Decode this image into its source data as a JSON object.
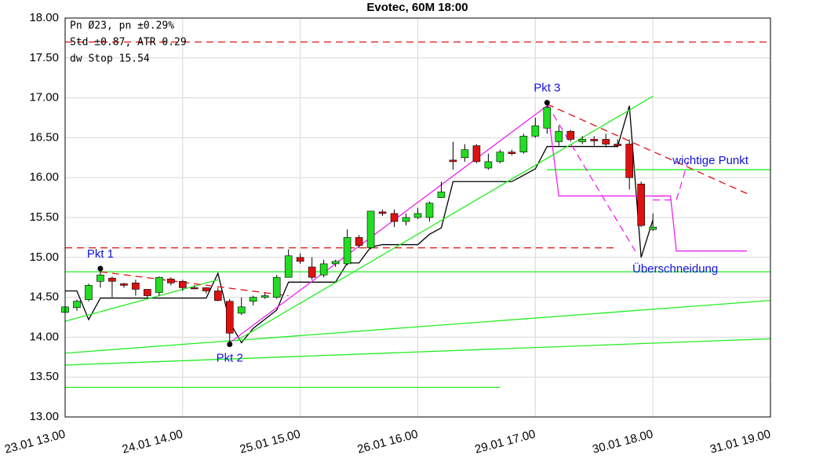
{
  "chart_data": {
    "type": "candlestick",
    "title": "Evotec, 60M 18:00",
    "info": [
      "Pn  Ø23, pn ±0.29%",
      "Std ±0.87, ATR 0.29",
      "dw Stop 15.54"
    ],
    "x": [
      0,
      1,
      2,
      3,
      4,
      5,
      6,
      7,
      8,
      9,
      10,
      11,
      12,
      13,
      14,
      15,
      16,
      17,
      18,
      19,
      20,
      21,
      22,
      23,
      24,
      25,
      26,
      27,
      28,
      29,
      30,
      31,
      32,
      33,
      34,
      35,
      36,
      37,
      38,
      39,
      40,
      41,
      42,
      43,
      44,
      45,
      46,
      47,
      48,
      49,
      50
    ],
    "open": [
      14.31,
      14.37,
      14.47,
      14.7,
      14.74,
      14.67,
      14.68,
      14.6,
      14.56,
      14.73,
      14.7,
      14.62,
      14.62,
      14.58,
      14.45,
      14.3,
      14.45,
      14.5,
      14.5,
      14.75,
      15.0,
      14.88,
      14.78,
      14.92,
      14.92,
      15.25,
      15.12,
      15.57,
      15.55,
      15.45,
      15.5,
      15.5,
      15.75,
      16.22,
      16.25,
      16.4,
      16.12,
      16.2,
      16.32,
      16.32,
      16.52,
      16.62,
      16.45,
      16.58,
      16.45,
      16.48,
      16.48,
      16.42,
      16.42,
      15.92,
      15.35
    ],
    "high": [
      14.4,
      14.47,
      14.67,
      14.85,
      14.76,
      14.68,
      14.72,
      14.6,
      14.76,
      14.75,
      14.72,
      14.65,
      14.62,
      14.62,
      14.48,
      14.5,
      14.52,
      14.55,
      14.78,
      15.1,
      15.05,
      15.0,
      14.97,
      14.97,
      15.35,
      15.28,
      15.58,
      15.6,
      15.6,
      15.55,
      15.62,
      15.7,
      15.95,
      16.45,
      16.42,
      16.42,
      16.3,
      16.35,
      16.35,
      16.55,
      16.75,
      16.95,
      16.65,
      16.6,
      16.52,
      16.52,
      16.55,
      16.48,
      16.48,
      15.95,
      15.55
    ],
    "low": [
      14.28,
      14.33,
      14.45,
      14.62,
      14.5,
      14.62,
      14.52,
      14.5,
      14.52,
      14.65,
      14.58,
      14.6,
      14.55,
      14.45,
      13.92,
      14.28,
      14.4,
      14.48,
      14.48,
      14.75,
      14.92,
      14.72,
      14.75,
      14.88,
      14.9,
      15.12,
      15.1,
      15.52,
      15.38,
      15.4,
      15.48,
      15.45,
      15.75,
      16.1,
      16.2,
      16.18,
      16.1,
      16.18,
      16.28,
      16.3,
      16.5,
      16.55,
      16.4,
      16.45,
      16.42,
      16.4,
      16.38,
      16.38,
      15.85,
      15.38,
      15.33
    ],
    "close": [
      14.38,
      14.45,
      14.65,
      14.78,
      14.7,
      14.65,
      14.6,
      14.52,
      14.75,
      14.68,
      14.62,
      14.61,
      14.58,
      14.46,
      14.05,
      14.38,
      14.5,
      14.52,
      14.75,
      15.02,
      14.95,
      14.75,
      14.92,
      14.95,
      15.25,
      15.15,
      15.58,
      15.55,
      15.45,
      15.5,
      15.55,
      15.68,
      15.82,
      16.2,
      16.35,
      16.2,
      16.2,
      16.32,
      16.3,
      16.52,
      16.65,
      16.88,
      16.58,
      16.48,
      16.48,
      16.46,
      16.42,
      16.4,
      16.0,
      15.4,
      15.38
    ],
    "up_color": "#22dd22",
    "down_color": "#dd1111",
    "xlim": [
      0,
      60
    ],
    "xticks": [
      {
        "value": 0,
        "label": "23.01 13.00"
      },
      {
        "value": 10,
        "label": "24.01 14.00"
      },
      {
        "value": 20,
        "label": "25.01 15.00"
      },
      {
        "value": 30,
        "label": "26.01 16.00"
      },
      {
        "value": 40,
        "label": "29.01 17.00"
      },
      {
        "value": 50,
        "label": "30.01 18.00"
      },
      {
        "value": 60,
        "label": "31.01 19.00"
      }
    ],
    "ylim": [
      13,
      18
    ],
    "yticks": [
      {
        "value": 13,
        "label": "13.00"
      },
      {
        "value": 13.5,
        "label": "13.50"
      },
      {
        "value": 14,
        "label": "14.00"
      },
      {
        "value": 14.5,
        "label": "14.50"
      },
      {
        "value": 15,
        "label": "15.00"
      },
      {
        "value": 15.5,
        "label": "15.50"
      },
      {
        "value": 16,
        "label": "16.00"
      },
      {
        "value": 16.5,
        "label": "16.50"
      },
      {
        "value": 17,
        "label": "17.00"
      },
      {
        "value": 17.5,
        "label": "17.50"
      },
      {
        "value": 18,
        "label": "18.00"
      }
    ],
    "grid": true,
    "lines": [
      {
        "color": "#000000",
        "dashed": false,
        "x": [
          0,
          1,
          2,
          3,
          12,
          13,
          14,
          15,
          16,
          18,
          19,
          23,
          24,
          25,
          26,
          27,
          30,
          31,
          32,
          33,
          38,
          39,
          40,
          41,
          47,
          48,
          49,
          50
        ],
        "y": [
          14.58,
          14.58,
          14.22,
          14.49,
          14.49,
          14.8,
          14.19,
          13.93,
          14.11,
          14.34,
          14.69,
          14.69,
          14.93,
          14.93,
          15.13,
          15.16,
          15.16,
          15.29,
          15.37,
          15.95,
          15.95,
          16.03,
          16.11,
          16.39,
          16.39,
          16.9,
          15.0,
          15.47
        ]
      },
      {
        "color": "#22ee22",
        "dashed": false,
        "x": [
          0,
          13
        ],
        "y": [
          14.2,
          14.72
        ]
      },
      {
        "color": "#22ee22",
        "dashed": false,
        "x": [
          0,
          60
        ],
        "y": [
          14.82,
          14.82
        ]
      },
      {
        "color": "#22ee22",
        "dashed": false,
        "x": [
          14.5,
          50
        ],
        "y": [
          13.95,
          17.02
        ]
      },
      {
        "color": "#22ee22",
        "dashed": false,
        "x": [
          41,
          60
        ],
        "y": [
          16.1,
          16.1
        ]
      },
      {
        "color": "#22ee22",
        "dashed": false,
        "x": [
          0,
          60
        ],
        "y": [
          13.8,
          14.46
        ]
      },
      {
        "color": "#22ee22",
        "dashed": false,
        "x": [
          0,
          60
        ],
        "y": [
          13.65,
          13.98
        ]
      },
      {
        "color": "#22ee22",
        "dashed": false,
        "x": [
          0,
          37
        ],
        "y": [
          13.37,
          13.37
        ]
      },
      {
        "color": "#dd1111",
        "dashed": true,
        "x": [
          0,
          60
        ],
        "y": [
          17.7,
          17.7
        ]
      },
      {
        "color": "#dd1111",
        "dashed": true,
        "x": [
          0,
          47
        ],
        "y": [
          15.12,
          15.12
        ]
      },
      {
        "color": "#dd1111",
        "dashed": true,
        "x": [
          3,
          19
        ],
        "y": [
          14.82,
          14.52
        ]
      },
      {
        "color": "#dd1111",
        "dashed": true,
        "x": [
          41,
          58
        ],
        "y": [
          16.92,
          15.8
        ]
      },
      {
        "color": "#ee22ee",
        "dashed": false,
        "x": [
          14,
          41
        ],
        "y": [
          13.93,
          16.9
        ]
      },
      {
        "color": "#ee22ee",
        "dashed": false,
        "x": [
          41,
          42,
          51
        ],
        "y": [
          16.92,
          15.77,
          15.77
        ]
      },
      {
        "color": "#ee22ee",
        "dashed": false,
        "x": [
          50,
          51.5,
          52,
          58
        ],
        "y": [
          15.77,
          15.77,
          15.08,
          15.08
        ]
      },
      {
        "color": "#ee22ee",
        "dashed": true,
        "x": [
          41,
          48.5
        ],
        "y": [
          16.92,
          15.08
        ]
      },
      {
        "color": "#ee22ee",
        "dashed": true,
        "x": [
          50,
          52,
          53
        ],
        "y": [
          15.72,
          15.72,
          16.21
        ]
      }
    ],
    "points": [
      {
        "label": "Pkt 1",
        "x": 3,
        "y": 14.86,
        "label_position": "above"
      },
      {
        "label": "Pkt 2",
        "x": 14,
        "y": 13.91,
        "label_position": "below"
      },
      {
        "label": "Pkt 3",
        "x": 41,
        "y": 16.94,
        "label_position": "above"
      }
    ],
    "annotations": [
      {
        "text": "wichtige Punkt",
        "x": 54.9,
        "y": 16.21
      },
      {
        "text": "Überschneidung",
        "x": 51.9,
        "y": 14.85
      }
    ],
    "annotation_color": "#1111dd"
  }
}
